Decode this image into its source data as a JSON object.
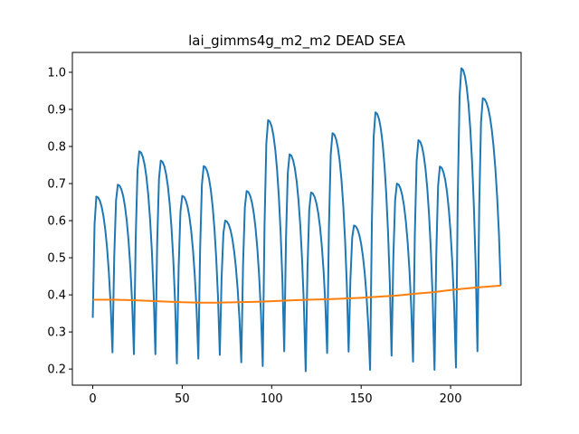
{
  "chart_data": {
    "type": "line",
    "title": "lai_gimms4g_m2_m2 DEAD SEA",
    "xlabel": "",
    "ylabel": "",
    "xlim": [
      -11.4,
      239.4
    ],
    "ylim": [
      0.1565,
      1.0535
    ],
    "xticks": [
      0,
      50,
      100,
      150,
      200
    ],
    "yticks": [
      0.2,
      0.3,
      0.4,
      0.5,
      0.6,
      0.7,
      0.8,
      0.9,
      1.0
    ],
    "xtick_labels": [
      "0",
      "50",
      "100",
      "150",
      "200"
    ],
    "ytick_labels": [
      "0.2",
      "0.3",
      "0.4",
      "0.5",
      "0.6",
      "0.7",
      "0.8",
      "0.9",
      "1.0"
    ],
    "grid": false,
    "legend": "none",
    "series": [
      {
        "color": "#1f77b4",
        "peak_values": [
          0.665,
          0.697,
          0.787,
          0.762,
          0.667,
          0.747,
          0.6,
          0.68,
          0.871,
          0.779,
          0.676,
          0.836,
          0.587,
          0.892,
          0.7,
          0.817,
          0.746,
          1.011,
          0.93
        ],
        "trough_values": [
          0.245,
          0.24,
          0.24,
          0.215,
          0.228,
          0.238,
          0.218,
          0.208,
          0.248,
          0.194,
          0.243,
          0.247,
          0.198,
          0.236,
          0.22,
          0.198,
          0.204,
          0.248
        ],
        "start": 0.338,
        "end": 0.425
      },
      {
        "color": "#ff7f0e",
        "x": [
          0,
          10,
          20,
          30,
          40,
          50,
          60,
          70,
          80,
          90,
          100,
          110,
          120,
          130,
          140,
          150,
          160,
          170,
          180,
          190,
          200,
          210,
          220,
          228
        ],
        "y": [
          0.387,
          0.387,
          0.386,
          0.384,
          0.382,
          0.38,
          0.379,
          0.379,
          0.38,
          0.381,
          0.383,
          0.385,
          0.387,
          0.388,
          0.39,
          0.392,
          0.395,
          0.398,
          0.403,
          0.407,
          0.413,
          0.418,
          0.422,
          0.425
        ]
      }
    ]
  }
}
